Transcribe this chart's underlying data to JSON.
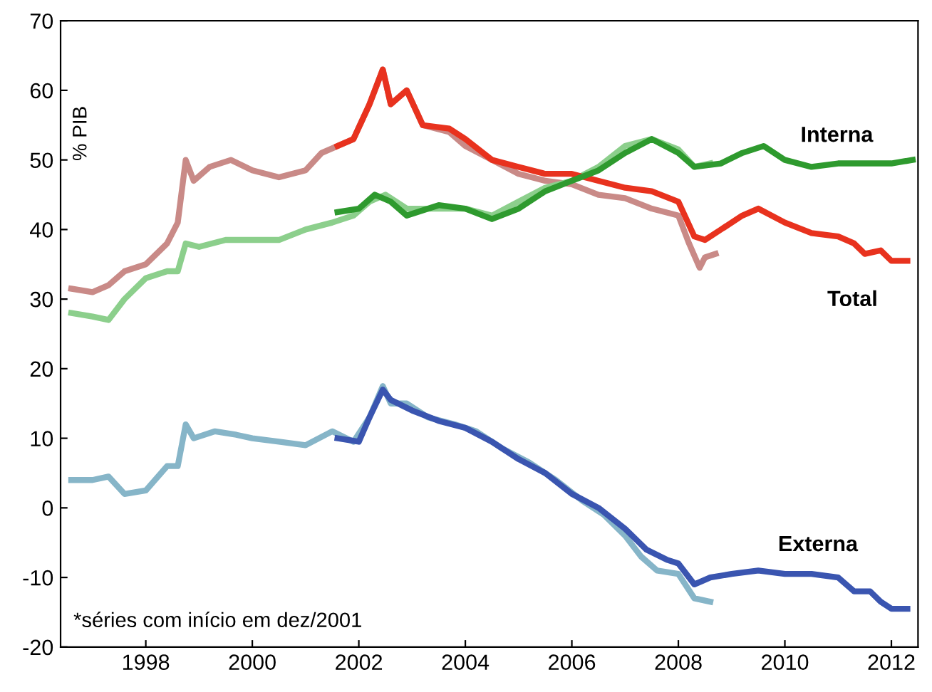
{
  "chart_data": {
    "type": "line",
    "ylabel": "% PIB",
    "xlim": [
      1996.4,
      2012.5
    ],
    "ylim": [
      -20,
      70
    ],
    "xticks": [
      {
        "value": 1998,
        "label": "1998"
      },
      {
        "value": 2000,
        "label": "2000"
      },
      {
        "value": 2002,
        "label": "2002"
      },
      {
        "value": 2004,
        "label": "2004"
      },
      {
        "value": 2006,
        "label": "2006"
      },
      {
        "value": 2008,
        "label": "2008"
      },
      {
        "value": 2010,
        "label": "2010"
      },
      {
        "value": 2012,
        "label": "2012"
      }
    ],
    "yticks": [
      -20,
      -10,
      0,
      10,
      20,
      30,
      40,
      50,
      60,
      70
    ],
    "grid": false,
    "legend": false,
    "annotations": [
      "*séries com início em dez/2001"
    ],
    "series": [
      {
        "color": "#c98a87",
        "x": [
          1996.6,
          1997.0,
          1997.3,
          1997.6,
          1998.0,
          1998.4,
          1998.6,
          1998.75,
          1998.9,
          1999.2,
          1999.6,
          2000.0,
          2000.5,
          2001.0,
          2001.3,
          2001.6,
          2001.9,
          2002.2,
          2002.45,
          2002.6,
          2002.9,
          2003.2,
          2003.7,
          2004.0,
          2004.5,
          2005.0,
          2005.5,
          2006.0,
          2006.5,
          2007.0,
          2007.5,
          2008.0,
          2008.2,
          2008.4,
          2008.5,
          2008.7
        ],
        "values": [
          31.5,
          31,
          32,
          34,
          35,
          38,
          41,
          50,
          47,
          49,
          50,
          48.5,
          47.5,
          48.5,
          51,
          52,
          53,
          58,
          63,
          58,
          60,
          55,
          54,
          52,
          50,
          48,
          47,
          46.5,
          45,
          44.5,
          43,
          42,
          38,
          34.5,
          36,
          36.5
        ]
      },
      {
        "color": "#8ccf8c",
        "x": [
          1996.6,
          1997.0,
          1997.3,
          1997.6,
          1998.0,
          1998.4,
          1998.6,
          1998.75,
          1999.0,
          1999.5,
          2000.0,
          2000.5,
          2001.0,
          2001.5,
          2001.9,
          2002.2,
          2002.5,
          2002.9,
          2003.5,
          2004.0,
          2004.5,
          2005.0,
          2005.5,
          2006.0,
          2006.5,
          2007.0,
          2007.5,
          2008.0,
          2008.3,
          2008.6
        ],
        "values": [
          28,
          27.5,
          27,
          30,
          33,
          34,
          34,
          38,
          37.5,
          38.5,
          38.5,
          38.5,
          40,
          41,
          42,
          44,
          45,
          43,
          43,
          43,
          42,
          44,
          46,
          47,
          49,
          52,
          53,
          51.5,
          49,
          49.5
        ]
      },
      {
        "color": "#86b5c8",
        "x": [
          1996.6,
          1997.0,
          1997.3,
          1997.6,
          1998.0,
          1998.4,
          1998.6,
          1998.75,
          1998.9,
          1999.3,
          1999.7,
          2000.0,
          2000.5,
          2001.0,
          2001.5,
          2001.9,
          2002.2,
          2002.45,
          2002.6,
          2002.9,
          2003.3,
          2003.8,
          2004.2,
          2004.7,
          2005.2,
          2005.7,
          2006.2,
          2006.6,
          2007.0,
          2007.3,
          2007.6,
          2008.0,
          2008.3,
          2008.6
        ],
        "values": [
          4,
          4,
          4.5,
          2,
          2.5,
          6,
          6,
          12,
          10,
          11,
          10.5,
          10,
          9.5,
          9,
          11,
          9.5,
          13,
          17.5,
          15,
          15,
          13,
          12,
          11,
          8.5,
          6.5,
          4,
          1,
          -1,
          -4,
          -7,
          -9,
          -9.5,
          -13,
          -13.5
        ]
      },
      {
        "name": "Total",
        "color": "#e8321e",
        "x": [
          2001.6,
          2001.9,
          2002.2,
          2002.45,
          2002.6,
          2002.9,
          2003.2,
          2003.7,
          2004.0,
          2004.5,
          2005.0,
          2005.5,
          2006.0,
          2006.5,
          2007.0,
          2007.5,
          2008.0,
          2008.3,
          2008.5,
          2008.8,
          2009.2,
          2009.5,
          2010.0,
          2010.5,
          2011.0,
          2011.3,
          2011.5,
          2011.8,
          2012.0,
          2012.3
        ],
        "values": [
          52,
          53,
          58,
          63,
          58,
          60,
          55,
          54.5,
          53,
          50,
          49,
          48,
          48,
          47,
          46,
          45.5,
          44,
          39,
          38.5,
          40,
          42,
          43,
          41,
          39.5,
          39,
          38,
          36.5,
          37,
          35.5,
          35.5
        ]
      },
      {
        "name": "Interna",
        "color": "#2e9a2e",
        "x": [
          2001.6,
          2002.0,
          2002.3,
          2002.6,
          2002.9,
          2003.5,
          2004.0,
          2004.5,
          2005.0,
          2005.5,
          2006.0,
          2006.5,
          2007.0,
          2007.5,
          2008.0,
          2008.3,
          2008.8,
          2009.2,
          2009.6,
          2010.0,
          2010.5,
          2011.0,
          2011.5,
          2012.0,
          2012.4
        ],
        "values": [
          42.5,
          43,
          45,
          44,
          42,
          43.5,
          43,
          41.5,
          43,
          45.5,
          47,
          48.5,
          51,
          53,
          51,
          49,
          49.5,
          51,
          52,
          50,
          49,
          49.5,
          49.5,
          49.5,
          50
        ]
      },
      {
        "name": "Externa",
        "color": "#3a55b0",
        "x": [
          2001.6,
          2002.0,
          2002.2,
          2002.45,
          2002.6,
          2003.0,
          2003.5,
          2004.0,
          2004.5,
          2005.0,
          2005.5,
          2006.0,
          2006.5,
          2007.0,
          2007.4,
          2007.8,
          2008.0,
          2008.3,
          2008.6,
          2009.0,
          2009.5,
          2010.0,
          2010.5,
          2011.0,
          2011.3,
          2011.6,
          2011.8,
          2012.0,
          2012.3
        ],
        "values": [
          10,
          9.5,
          13,
          17,
          15.5,
          14,
          12.5,
          11.5,
          9.5,
          7,
          5,
          2,
          0,
          -3,
          -6,
          -7.5,
          -8,
          -11,
          -10,
          -9.5,
          -9,
          -9.5,
          -9.5,
          -10,
          -12,
          -12,
          -13.5,
          -14.5,
          -14.5
        ]
      }
    ]
  }
}
